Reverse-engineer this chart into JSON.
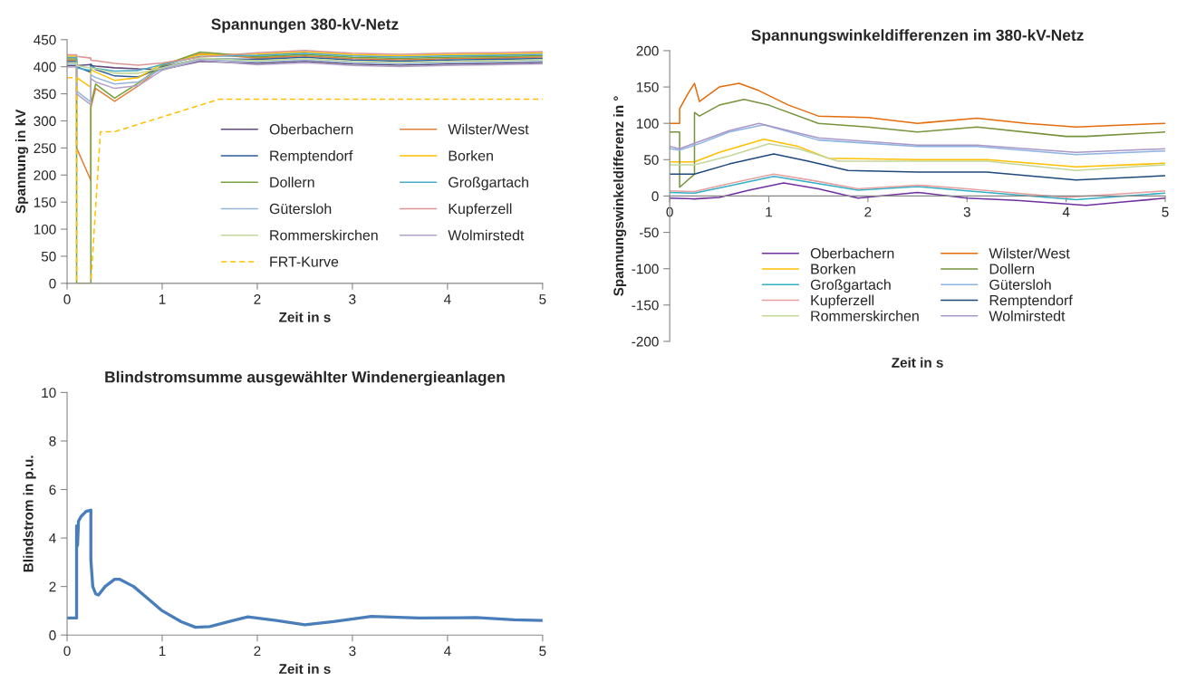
{
  "chart_data": [
    {
      "type": "line",
      "title": "Spannungen 380-kV-Netz",
      "xlabel": "Zeit in s",
      "ylabel": "Spannung in kV",
      "xlim": [
        0,
        5
      ],
      "xticks": [
        0,
        1,
        2,
        3,
        4,
        5
      ],
      "ylim": [
        0,
        450
      ],
      "yticks": [
        0,
        50,
        100,
        150,
        200,
        250,
        300,
        350,
        400,
        450
      ],
      "grid": false,
      "legend": "bottom right",
      "x": [
        0,
        0.1,
        0.1,
        0.25,
        0.25,
        0.3,
        0.5,
        0.75,
        1.0,
        1.4,
        2.0,
        2.5,
        3.0,
        3.5,
        4.0,
        4.5,
        5.0
      ],
      "series": [
        {
          "name": "Oberbachern",
          "color": "#604a7b",
          "values": [
            402,
            402,
            402,
            404,
            402,
            401,
            398,
            396,
            395,
            410,
            406,
            410,
            405,
            403,
            405,
            406,
            408
          ]
        },
        {
          "name": "Wilster/West",
          "color": "#e0803a",
          "values": [
            412,
            412,
            250,
            190,
            325,
            360,
            336,
            365,
            401,
            424,
            416,
            420,
            415,
            413,
            415,
            416,
            418
          ]
        },
        {
          "name": "Remptendorf",
          "color": "#2c5d9a",
          "values": [
            409.5,
            409.5,
            400,
            390,
            405,
            395,
            383,
            381,
            399.5,
            415,
            413.5,
            417.5,
            412.5,
            410.5,
            412.5,
            413.5,
            415.5
          ]
        },
        {
          "name": "Borken",
          "color": "#ffc000",
          "values": [
            419.5,
            419.5,
            380,
            362,
            395,
            390,
            375,
            380,
            405.5,
            422,
            423.5,
            427.5,
            422.5,
            420.5,
            422.5,
            423.5,
            425.5
          ]
        },
        {
          "name": "Dollern",
          "color": "#77a03a",
          "values": [
            414.5,
            414.5,
            0,
            0,
            330,
            368,
            342,
            370,
            402.5,
            427,
            418.5,
            422.5,
            417.5,
            415.5,
            417.5,
            418.5,
            420.5
          ]
        },
        {
          "name": "Großgartach",
          "color": "#4bacc6",
          "values": [
            417,
            417,
            398,
            393,
            400,
            397,
            392,
            393,
            404,
            419,
            421,
            425,
            420,
            418,
            420,
            421,
            423
          ]
        },
        {
          "name": "Gütersloh",
          "color": "#95b3d7",
          "values": [
            404.5,
            404.5,
            355,
            335,
            385,
            380,
            368,
            372,
            396.5,
            414,
            408.5,
            412.5,
            407.5,
            405.5,
            407.5,
            408.5,
            410.5
          ]
        },
        {
          "name": "Kupferzell",
          "color": "#d99694",
          "values": [
            422,
            422,
            419,
            416,
            412,
            411,
            406,
            403,
            407,
            418,
            426,
            430,
            425,
            423,
            425,
            426,
            428
          ]
        },
        {
          "name": "Rommerskirchen",
          "color": "#c3d69b",
          "values": [
            407,
            407,
            402,
            398,
            398,
            396,
            388,
            388,
            398,
            416,
            411,
            415,
            410,
            408,
            410,
            411,
            413
          ]
        },
        {
          "name": "Wolmirstedt",
          "color": "#b3a2c7",
          "values": [
            399.5,
            399.5,
            350,
            330,
            378,
            372,
            360,
            365,
            393.5,
            412,
            403.5,
            407.5,
            402.5,
            400.5,
            402.5,
            403.5,
            405.5
          ]
        },
        {
          "name": "FRT-Kurve",
          "color": "#ffc000",
          "line_style": "dashed",
          "x": [
            0,
            0.1,
            0.1,
            0.25,
            0.35,
            0.5,
            1.6,
            5.0
          ],
          "values": [
            380,
            380,
            0,
            0,
            280,
            280,
            340,
            340
          ]
        }
      ]
    },
    {
      "type": "line",
      "title": "Spannungswinkeldifferenzen im 380-kV-Netz",
      "xlabel": "Zeit in s",
      "ylabel": "Spannungswinkeldifferenz in °",
      "xlim": [
        0,
        5
      ],
      "xticks": [
        0,
        1,
        2,
        3,
        4,
        5
      ],
      "ylim": [
        -200,
        200
      ],
      "yticks": [
        -200,
        -150,
        -100,
        -50,
        0,
        50,
        100,
        150,
        200
      ],
      "grid": false,
      "legend": "bottom",
      "series": [
        {
          "name": "Oberbachern",
          "color": "#7030a0",
          "x": [
            0,
            0.25,
            0.5,
            0.8,
            1.15,
            1.5,
            1.9,
            2.5,
            3.0,
            3.5,
            4.2,
            4.6,
            5.0
          ],
          "values": [
            -3,
            -4,
            -2,
            8,
            18,
            10,
            -3,
            5,
            -3,
            -6,
            -13,
            -8,
            -3
          ]
        },
        {
          "name": "Wilster/West",
          "color": "#e46c0a",
          "x": [
            0,
            0.1,
            0.1,
            0.18,
            0.25,
            0.3,
            0.5,
            0.7,
            0.9,
            1.2,
            1.5,
            2.0,
            2.5,
            3.1,
            3.6,
            4.1,
            5.0
          ],
          "values": [
            100,
            100,
            120,
            140,
            155,
            130,
            150,
            155,
            145,
            125,
            110,
            108,
            100,
            107,
            100,
            95,
            100
          ]
        },
        {
          "name": "Borken",
          "color": "#ffc000",
          "x": [
            0,
            0.25,
            0.5,
            0.95,
            1.3,
            1.6,
            2.5,
            3.2,
            4.1,
            5.0
          ],
          "values": [
            47,
            47,
            60,
            78,
            68,
            52,
            50,
            50,
            40,
            45
          ]
        },
        {
          "name": "Dollern",
          "color": "#77933c",
          "x": [
            0,
            0.1,
            0.1,
            0.25,
            0.25,
            0.3,
            0.5,
            0.75,
            1.0,
            1.5,
            2.0,
            2.5,
            3.1,
            4.0,
            4.2,
            5.0
          ],
          "values": [
            88,
            88,
            12,
            30,
            115,
            110,
            125,
            133,
            125,
            100,
            95,
            88,
            95,
            82,
            82,
            88
          ]
        },
        {
          "name": "Großgartach",
          "color": "#31b0c6",
          "x": [
            0,
            0.25,
            0.6,
            1.05,
            1.5,
            1.9,
            2.5,
            3.0,
            4.1,
            5.0
          ],
          "values": [
            5,
            4,
            14,
            27,
            17,
            8,
            13,
            7,
            -5,
            4
          ]
        },
        {
          "name": "Gütersloh",
          "color": "#8db3e2",
          "x": [
            0,
            0.1,
            0.3,
            0.6,
            0.95,
            1.5,
            2.5,
            3.1,
            4.1,
            5.0
          ],
          "values": [
            65,
            63,
            72,
            88,
            98,
            77,
            68,
            68,
            57,
            62
          ]
        },
        {
          "name": "Kupferzell",
          "color": "#e6a0a0",
          "x": [
            0,
            0.25,
            0.6,
            1.05,
            1.5,
            1.9,
            2.5,
            3.0,
            4.0,
            5.0
          ],
          "values": [
            7,
            6,
            17,
            30,
            20,
            10,
            15,
            10,
            -2,
            7
          ]
        },
        {
          "name": "Remptendorf",
          "color": "#1f497d",
          "x": [
            0,
            0.25,
            0.6,
            1.05,
            1.4,
            1.8,
            2.5,
            3.2,
            4.1,
            5.0
          ],
          "values": [
            30,
            30,
            44,
            58,
            48,
            35,
            33,
            33,
            22,
            28
          ]
        },
        {
          "name": "Rommerskirchen",
          "color": "#c3d69b",
          "x": [
            0,
            0.25,
            0.6,
            1.0,
            1.3,
            1.7,
            2.5,
            3.2,
            4.1,
            5.0
          ],
          "values": [
            43,
            43,
            55,
            72,
            65,
            48,
            48,
            48,
            35,
            43
          ]
        },
        {
          "name": "Wolmirstedt",
          "color": "#a997c7",
          "x": [
            0,
            0.1,
            0.3,
            0.6,
            0.9,
            1.5,
            2.5,
            3.1,
            4.1,
            5.0
          ],
          "values": [
            68,
            65,
            75,
            90,
            100,
            80,
            70,
            70,
            60,
            65
          ]
        }
      ]
    },
    {
      "type": "line",
      "title": "Blindstromsumme ausgewählter Windenergieanlagen",
      "xlabel": "Zeit in s",
      "ylabel": "Blindstrom in p.u.",
      "xlim": [
        0,
        5
      ],
      "xticks": [
        0,
        1,
        2,
        3,
        4,
        5
      ],
      "ylim": [
        0,
        10
      ],
      "yticks": [
        0,
        2,
        4,
        6,
        8,
        10
      ],
      "grid": false,
      "series": [
        {
          "color": "#4a7ebb",
          "x": [
            0,
            0.1,
            0.1,
            0.11,
            0.12,
            0.15,
            0.2,
            0.25,
            0.25,
            0.27,
            0.3,
            0.33,
            0.4,
            0.5,
            0.55,
            0.7,
            0.85,
            1.0,
            1.2,
            1.35,
            1.5,
            1.9,
            2.2,
            2.5,
            2.8,
            3.2,
            3.7,
            4.3,
            4.7,
            5.0
          ],
          "values": [
            0.7,
            0.7,
            4.5,
            3.7,
            4.7,
            4.9,
            5.1,
            5.15,
            3.1,
            2.0,
            1.7,
            1.65,
            2.0,
            2.3,
            2.3,
            2.0,
            1.5,
            1.0,
            0.55,
            0.32,
            0.35,
            0.75,
            0.6,
            0.42,
            0.55,
            0.77,
            0.7,
            0.72,
            0.63,
            0.6
          ]
        }
      ]
    }
  ]
}
